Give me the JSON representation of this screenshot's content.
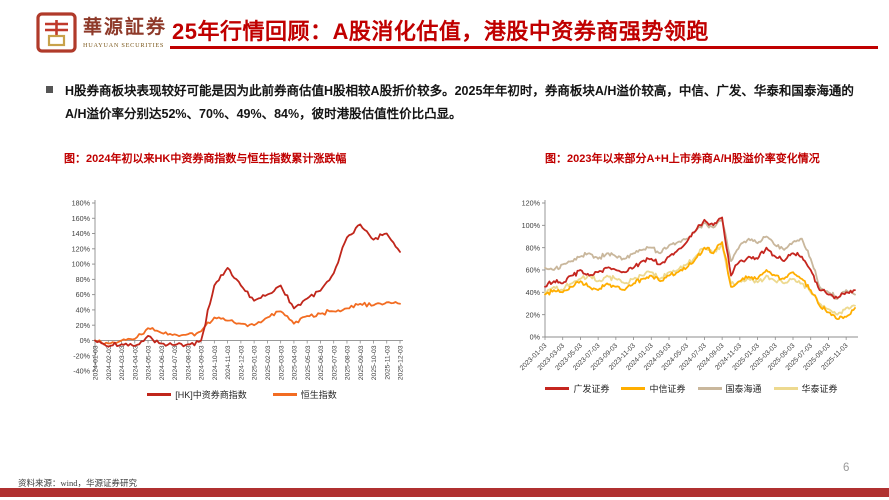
{
  "header": {
    "logo_cn": "華源証券",
    "logo_en": "HUAYUAN SECURITIES",
    "title": "25年行情回顾：A股消化估值，港股中资券商强势领跑"
  },
  "body": {
    "bullet": "H股券商板块表现较好可能是因为此前券商估值H股相较A股折价较多。2025年年初时，券商板块A/H溢价较高，中信、广发、华泰和国泰海通的A/H溢价率分别达52%、70%、49%、84%，彼时港股估值性价比凸显。"
  },
  "footer": {
    "source": "资料来源：wind，华源证券研究",
    "page_number": "6"
  },
  "colors": {
    "accent_red": "#C00000",
    "bottom_bar": "#B03030"
  },
  "chart_data": [
    {
      "type": "line",
      "title": "图：2024年初以来HK中资券商指数与恒生指数累计涨跌幅",
      "xlabel": "",
      "ylabel": "",
      "grid": false,
      "legend_position": "bottom",
      "ylim": [
        -40,
        180
      ],
      "ytick_step": 20,
      "ytick_format": "percent",
      "x_axis_at": 0,
      "x_label_rotation": -90,
      "xtick_every": 1,
      "x": [
        "2024-01-03",
        "2024-02-03",
        "2024-03-03",
        "2024-04-03",
        "2024-05-03",
        "2024-06-03",
        "2024-07-03",
        "2024-08-03",
        "2024-09-03",
        "2024-10-03",
        "2024-11-03",
        "2024-12-03",
        "2025-01-03",
        "2025-02-03",
        "2025-03-03",
        "2025-04-03",
        "2025-05-03",
        "2025-06-03",
        "2025-07-03",
        "2025-08-03",
        "2025-09-03",
        "2025-10-03",
        "2025-11-03",
        "2025-12-03"
      ],
      "series": [
        {
          "name": "[HK]中资券商指数",
          "color": "#C0261B",
          "values": [
            0,
            -8,
            -5,
            -7,
            6,
            -4,
            -6,
            -5,
            0,
            72,
            95,
            72,
            52,
            60,
            72,
            42,
            55,
            65,
            88,
            135,
            152,
            132,
            140,
            116
          ]
        },
        {
          "name": "恒生指数",
          "color": "#F26C22",
          "values": [
            0,
            -4,
            0,
            2,
            16,
            10,
            8,
            8,
            12,
            30,
            26,
            22,
            20,
            30,
            38,
            22,
            32,
            35,
            38,
            42,
            48,
            46,
            50,
            48
          ]
        }
      ]
    },
    {
      "type": "line",
      "title": "图：2023年以来部分A+H上市券商A/H股溢价率变化情况",
      "xlabel": "",
      "ylabel": "",
      "grid": false,
      "legend_position": "bottom",
      "ylim": [
        0,
        120
      ],
      "ytick_step": 20,
      "ytick_format": "percent",
      "x_axis_at": 0,
      "x_label_rotation": -45,
      "xtick_every": 2,
      "x": [
        "2023-01-03",
        "2023-02-03",
        "2023-03-03",
        "2023-04-03",
        "2023-05-03",
        "2023-06-03",
        "2023-07-03",
        "2023-08-03",
        "2023-09-03",
        "2023-10-03",
        "2023-11-03",
        "2023-12-03",
        "2024-01-03",
        "2024-02-03",
        "2024-03-03",
        "2024-04-03",
        "2024-05-03",
        "2024-06-03",
        "2024-07-03",
        "2024-08-03",
        "2024-09-03",
        "2024-10-03",
        "2024-11-03",
        "2024-12-03",
        "2025-01-03",
        "2025-02-03",
        "2025-03-03",
        "2025-04-03",
        "2025-05-03",
        "2025-06-03",
        "2025-07-03",
        "2025-08-03",
        "2025-09-03",
        "2025-10-03",
        "2025-11-03",
        "2025-12-03"
      ],
      "series": [
        {
          "name": "广发证券",
          "color": "#C5261F",
          "values": [
            45,
            50,
            48,
            55,
            60,
            55,
            58,
            62,
            60,
            58,
            62,
            68,
            70,
            65,
            72,
            78,
            85,
            95,
            105,
            100,
            107,
            55,
            68,
            72,
            70,
            80,
            72,
            68,
            75,
            72,
            60,
            42,
            38,
            35,
            40,
            42
          ]
        },
        {
          "name": "中信证券",
          "color": "#FFAE00",
          "values": [
            38,
            42,
            40,
            45,
            50,
            45,
            42,
            48,
            45,
            42,
            48,
            52,
            55,
            50,
            55,
            58,
            62,
            70,
            80,
            75,
            85,
            45,
            50,
            54,
            52,
            60,
            55,
            52,
            58,
            52,
            42,
            28,
            22,
            16,
            18,
            26
          ]
        },
        {
          "name": "国泰海通",
          "color": "#C9B79C",
          "values": [
            62,
            60,
            65,
            68,
            72,
            75,
            70,
            75,
            72,
            70,
            75,
            78,
            80,
            75,
            82,
            85,
            88,
            95,
            102,
            98,
            105,
            68,
            82,
            88,
            84,
            90,
            82,
            78,
            85,
            88,
            70,
            45,
            40,
            34,
            42,
            38
          ]
        },
        {
          "name": "华泰证券",
          "color": "#EDD98F",
          "values": [
            40,
            45,
            42,
            48,
            52,
            55,
            50,
            55,
            52,
            48,
            52,
            55,
            58,
            52,
            58,
            60,
            65,
            72,
            80,
            75,
            82,
            48,
            50,
            52,
            49,
            55,
            50,
            48,
            52,
            48,
            40,
            30,
            25,
            20,
            26,
            28
          ]
        }
      ]
    }
  ]
}
